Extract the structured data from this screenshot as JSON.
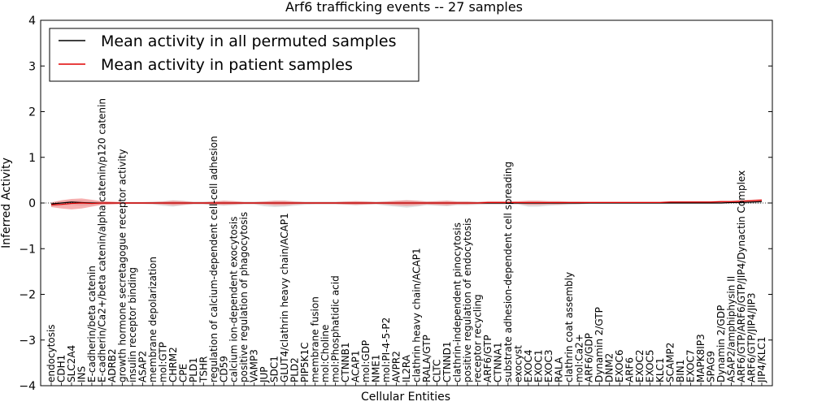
{
  "chart_data": {
    "type": "line",
    "title": "Arf6 trafficking events -- 27 samples",
    "xlabel": "Cellular Entities",
    "ylabel": "Inferred Activity",
    "ylim": [
      -4,
      4
    ],
    "yticks": [
      "4",
      "3",
      "2",
      "1",
      "0",
      "−1",
      "−2",
      "−3",
      "−4"
    ],
    "ytick_values": [
      4,
      3,
      2,
      1,
      0,
      -1,
      -2,
      -3,
      -4
    ],
    "legend_position": "top-left",
    "categories": [
      "endocytosis",
      "CDH1",
      "SLC2A4",
      "INS",
      "E-cadherin/beta catenin",
      "E-cadherin/Ca2+/beta catenin/alpha catenin/p120 catenin",
      "ADRB2",
      "growth hormone secretagogue receptor activity",
      "insulin receptor binding",
      "ASAP2",
      "membrane depolarization",
      "mol:GTP",
      "CHRM2",
      "CPE",
      "PLD1",
      "TSHR",
      "regulation of calcium-dependent cell-cell adhesion",
      "CD59",
      "calcium ion-dependent exocytosis",
      "positive regulation of phagocytosis",
      "VAMP3",
      "JUP",
      "SDC1",
      "GLUT4/clathrin heavy chain/ACAP1",
      "PLD2",
      "PIP5K1C",
      "membrane fusion",
      "mol:Choline",
      "mol:Phosphatidic acid",
      "CTNNB1",
      "ACAP1",
      "mol:GDP",
      "NME1",
      "mol:PI-4-5-P2",
      "AVPR2",
      "IL2RA",
      "clathrin heavy chain/ACAP1",
      "RALA/GTP",
      "CLTC",
      "CTNND1",
      "clathrin-independent pinocytosis",
      "positive regulation of endocytosis",
      "receptor recycling",
      "ARF6/GTP",
      "CTNNA1",
      "substrate adhesion-dependent cell spreading",
      "exocyst",
      "EXOC4",
      "EXOC1",
      "EXOC3",
      "RALA",
      "clathrin coat assembly",
      "mol:Ca2+",
      "ARF6/GDP",
      "Dynamin 2/GTP",
      "DNM2",
      "EXOC6",
      "ARF6",
      "EXOC2",
      "EXOC5",
      "KLC1",
      "SCAMP2",
      "BIN1",
      "EXOC7",
      "MAPK8IP3",
      "SPAG9",
      "Dynamin 2/GDP",
      "ASAP2/amphiphysin II",
      "ARF6/GTP/ARF6/GTP/JIP4/Dynactin Complex",
      "ARF6/GTP/JIP4/JIP3",
      "JIP4/KLC1"
    ],
    "series": [
      {
        "name": "Mean activity in all permuted samples",
        "color": "#000000",
        "values": [
          -0.02,
          0.0,
          0.02,
          0.01,
          0.0,
          0.0,
          0.0,
          0.0,
          0.0,
          0.0,
          0.0,
          0.0,
          0.0,
          0.0,
          0.0,
          0.0,
          0.0,
          0.0,
          0.0,
          0.0,
          0.0,
          0.0,
          0.0,
          0.0,
          0.0,
          0.0,
          0.0,
          0.0,
          0.0,
          0.0,
          0.0,
          0.0,
          0.0,
          0.0,
          0.0,
          0.0,
          0.0,
          0.0,
          0.0,
          0.0,
          0.0,
          0.0,
          0.0,
          0.0,
          0.0,
          0.0,
          0.0,
          0.0,
          0.0,
          0.0,
          0.0,
          0.0,
          0.0,
          0.0,
          0.0,
          0.0,
          0.0,
          0.0,
          0.0,
          0.0,
          0.0,
          0.0,
          0.0,
          0.0,
          0.0,
          0.0,
          0.0,
          0.01,
          0.01,
          0.02,
          0.03
        ],
        "band_low": [
          -0.08,
          -0.06,
          -0.04,
          -0.06,
          -0.05,
          -0.03,
          -0.02,
          -0.02,
          -0.02,
          -0.02,
          -0.03,
          -0.06,
          -0.08,
          -0.05,
          -0.03,
          -0.03,
          -0.05,
          -0.06,
          -0.05,
          -0.03,
          -0.03,
          -0.07,
          -0.09,
          -0.08,
          -0.06,
          -0.04,
          -0.03,
          -0.03,
          -0.03,
          -0.04,
          -0.05,
          -0.04,
          -0.03,
          -0.06,
          -0.08,
          -0.1,
          -0.08,
          -0.05,
          -0.06,
          -0.07,
          -0.05,
          -0.05,
          -0.04,
          -0.03,
          -0.03,
          -0.03,
          -0.03,
          -0.08,
          -0.08,
          -0.06,
          -0.05,
          -0.04,
          -0.03,
          -0.02,
          -0.02,
          -0.02,
          -0.02,
          -0.02,
          -0.02,
          -0.02,
          -0.02,
          -0.02,
          -0.02,
          -0.02,
          -0.02,
          -0.02,
          -0.02,
          -0.02,
          -0.02,
          -0.02,
          -0.02
        ],
        "band_high": [
          0.02,
          0.04,
          0.06,
          0.06,
          0.04,
          0.03,
          0.02,
          0.02,
          0.02,
          0.02,
          0.03,
          0.04,
          0.06,
          0.05,
          0.03,
          0.03,
          0.04,
          0.05,
          0.04,
          0.03,
          0.03,
          0.04,
          0.05,
          0.05,
          0.04,
          0.03,
          0.03,
          0.03,
          0.03,
          0.04,
          0.04,
          0.04,
          0.03,
          0.04,
          0.05,
          0.06,
          0.05,
          0.04,
          0.04,
          0.05,
          0.04,
          0.04,
          0.03,
          0.03,
          0.03,
          0.03,
          0.03,
          0.05,
          0.05,
          0.04,
          0.04,
          0.03,
          0.03,
          0.02,
          0.02,
          0.02,
          0.02,
          0.02,
          0.02,
          0.02,
          0.02,
          0.02,
          0.03,
          0.03,
          0.03,
          0.03,
          0.03,
          0.04,
          0.04,
          0.05,
          0.06
        ]
      },
      {
        "name": "Mean activity in patient samples",
        "color": "#e00000",
        "values": [
          -0.04,
          -0.03,
          -0.01,
          0.0,
          -0.01,
          0.0,
          0.0,
          0.0,
          0.0,
          0.0,
          0.0,
          0.0,
          0.0,
          0.0,
          0.0,
          0.0,
          0.0,
          0.0,
          0.0,
          0.0,
          0.0,
          0.0,
          0.0,
          0.0,
          0.0,
          0.0,
          0.0,
          0.0,
          0.0,
          0.0,
          0.0,
          0.0,
          0.0,
          0.0,
          0.0,
          0.0,
          0.0,
          0.0,
          0.0,
          0.0,
          0.0,
          0.0,
          0.0,
          0.01,
          0.01,
          0.01,
          0.01,
          0.01,
          0.01,
          0.01,
          0.01,
          0.01,
          0.01,
          0.01,
          0.01,
          0.01,
          0.01,
          0.01,
          0.01,
          0.01,
          0.01,
          0.02,
          0.02,
          0.02,
          0.02,
          0.02,
          0.03,
          0.03,
          0.04,
          0.05,
          0.06
        ],
        "band_low": [
          -0.09,
          -0.12,
          -0.14,
          -0.12,
          -0.08,
          -0.04,
          -0.03,
          -0.02,
          -0.02,
          -0.02,
          -0.02,
          -0.03,
          -0.05,
          -0.04,
          -0.02,
          -0.02,
          -0.03,
          -0.04,
          -0.03,
          -0.02,
          -0.02,
          -0.03,
          -0.05,
          -0.05,
          -0.03,
          -0.02,
          -0.02,
          -0.02,
          -0.02,
          -0.03,
          -0.04,
          -0.03,
          -0.02,
          -0.03,
          -0.05,
          -0.06,
          -0.05,
          -0.03,
          -0.04,
          -0.05,
          -0.03,
          -0.03,
          -0.02,
          -0.02,
          -0.02,
          -0.02,
          -0.02,
          -0.04,
          -0.04,
          -0.03,
          -0.03,
          -0.02,
          -0.02,
          -0.01,
          -0.01,
          -0.01,
          -0.01,
          -0.01,
          -0.01,
          -0.01,
          -0.01,
          0.0,
          0.0,
          0.0,
          0.0,
          0.0,
          0.01,
          0.01,
          0.02,
          0.02,
          0.03
        ],
        "band_high": [
          0.01,
          0.06,
          0.09,
          0.1,
          0.07,
          0.04,
          0.03,
          0.02,
          0.02,
          0.02,
          0.02,
          0.03,
          0.05,
          0.04,
          0.02,
          0.02,
          0.03,
          0.05,
          0.04,
          0.02,
          0.02,
          0.03,
          0.05,
          0.05,
          0.03,
          0.02,
          0.02,
          0.02,
          0.02,
          0.03,
          0.04,
          0.03,
          0.02,
          0.03,
          0.05,
          0.06,
          0.05,
          0.03,
          0.04,
          0.05,
          0.03,
          0.03,
          0.02,
          0.04,
          0.04,
          0.04,
          0.04,
          0.05,
          0.05,
          0.04,
          0.04,
          0.03,
          0.03,
          0.03,
          0.03,
          0.03,
          0.03,
          0.03,
          0.03,
          0.03,
          0.03,
          0.04,
          0.04,
          0.04,
          0.04,
          0.04,
          0.05,
          0.05,
          0.06,
          0.07,
          0.09
        ]
      }
    ]
  }
}
